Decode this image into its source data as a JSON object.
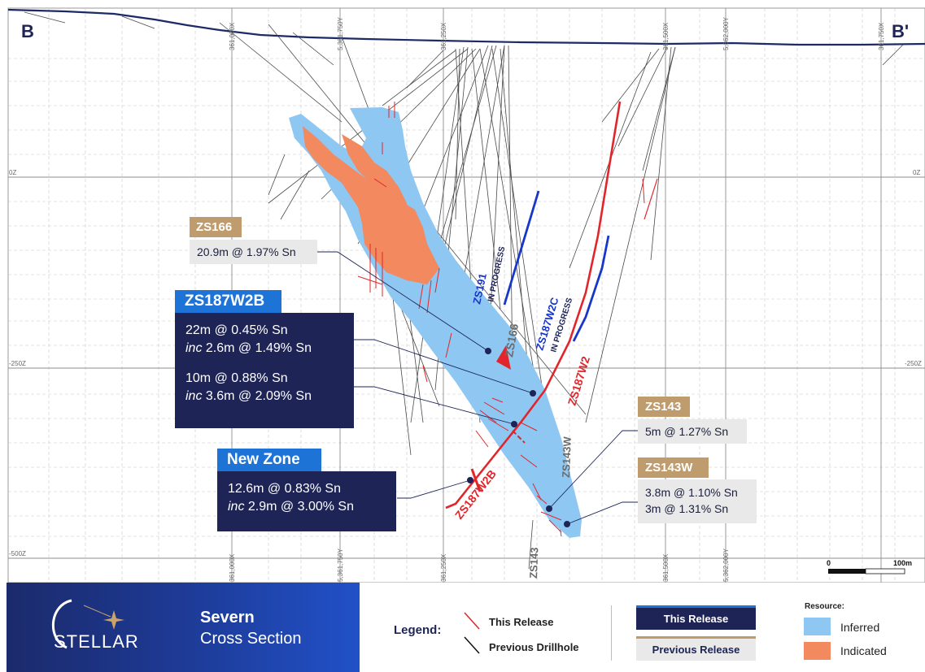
{
  "section": {
    "left_label": "B",
    "right_label": "B'",
    "eastings_top": [
      "361,000X",
      "5,361,750Y",
      "361,250X",
      "361,500X",
      "5,362,000Y",
      "361,750X"
    ],
    "eastings_bottom": [
      "361,000X",
      "5,361,750Y",
      "361,250X",
      "361,500X",
      "5,362,000Y"
    ],
    "elevations_left": [
      "0Z",
      "-250Z",
      "-500Z"
    ],
    "elevations_right": [
      "0Z",
      "-250Z"
    ],
    "scale": {
      "start": "0",
      "end": "100m"
    }
  },
  "holes": {
    "zs191": {
      "name": "ZS191",
      "status": "IN PROGRESS"
    },
    "zs187w2c": {
      "name": "ZS187W2C",
      "status": "IN PROGRESS"
    },
    "zs166": "ZS166",
    "zs187w2": "ZS187W2",
    "zs143w": "ZS143W",
    "zs187w2b": "ZS187W2B",
    "zs143": "ZS143"
  },
  "callouts": {
    "zs166": {
      "title": "ZS166",
      "lines": [
        "20.9m @ 1.97% Sn"
      ]
    },
    "zs187w2b": {
      "title": "ZS187W2B",
      "int1_main": "22m @ 0.45% Sn",
      "int1_inc_word": "inc",
      "int1_inc": " 2.6m @ 1.49% Sn",
      "int2_main": "10m @ 0.88% Sn",
      "int2_inc_word": "inc",
      "int2_inc": " 3.6m @ 2.09% Sn"
    },
    "new_zone": {
      "title": "New Zone",
      "main": "12.6m @ 0.83% Sn",
      "inc_word": "inc",
      "inc": " 2.9m @ 3.00% Sn"
    },
    "zs143": {
      "title": "ZS143",
      "lines": [
        "5m @ 1.27% Sn"
      ]
    },
    "zs143w": {
      "title": "ZS143W",
      "lines": [
        "3.8m @ 1.10% Sn",
        "3m @ 1.31% Sn"
      ]
    }
  },
  "footer": {
    "logo": "STELLAR",
    "title1": "Severn",
    "title2": "Cross Section",
    "legend_label": "Legend:",
    "this_release": "This Release",
    "previous_drillhole": "Previous Drillhole",
    "this_release_box": "This Release",
    "previous_release_box": "Previous Release",
    "resource_label": "Resource:",
    "inferred": "Inferred",
    "indicated": "Indicated"
  },
  "colors": {
    "inferred": "#8ec7f2",
    "indicated": "#f2895f",
    "navy": "#1e2456",
    "red": "#e1262b",
    "blue": "#1737c9",
    "tan": "#bf9c6e"
  }
}
